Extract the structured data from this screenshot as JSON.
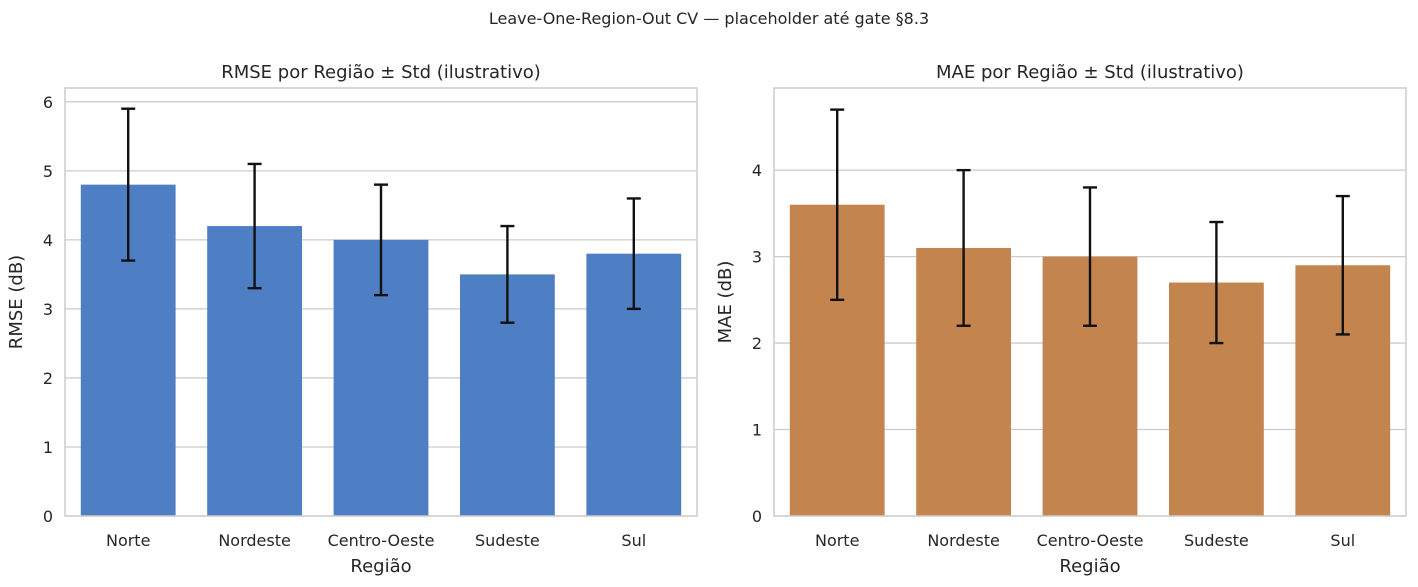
{
  "figure_title": "Leave-One-Region-Out CV — placeholder até gate §8.3",
  "chart_data": [
    {
      "type": "bar",
      "title": "RMSE por Região ± Std (ilustrativo)",
      "xlabel": "Região",
      "ylabel": "RMSE (dB)",
      "categories": [
        "Norte",
        "Nordeste",
        "Centro-Oeste",
        "Sudeste",
        "Sul"
      ],
      "values": [
        4.8,
        4.2,
        4.0,
        3.5,
        3.8
      ],
      "errors": [
        1.1,
        0.9,
        0.8,
        0.7,
        0.8
      ],
      "ylim": [
        0,
        6.2
      ],
      "yticks": [
        0,
        1,
        2,
        3,
        4,
        5,
        6
      ],
      "color": "#4e7fc4",
      "grid": "y"
    },
    {
      "type": "bar",
      "title": "MAE por Região ± Std (ilustrativo)",
      "xlabel": "Região",
      "ylabel": "MAE (dB)",
      "categories": [
        "Norte",
        "Nordeste",
        "Centro-Oeste",
        "Sudeste",
        "Sul"
      ],
      "values": [
        3.6,
        3.1,
        3.0,
        2.7,
        2.9
      ],
      "errors": [
        1.1,
        0.9,
        0.8,
        0.7,
        0.8
      ],
      "ylim": [
        0,
        4.95
      ],
      "yticks": [
        0,
        1,
        2,
        3,
        4
      ],
      "color": "#c4844e",
      "grid": "y"
    }
  ]
}
